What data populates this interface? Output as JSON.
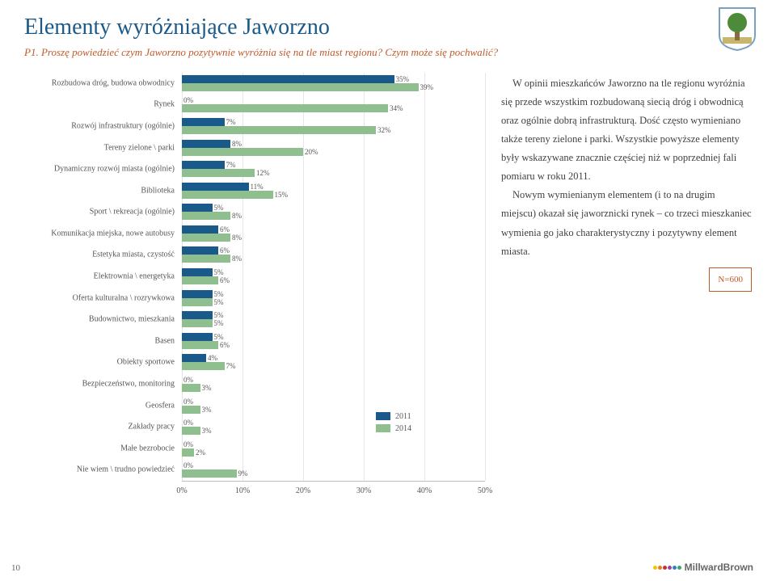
{
  "page": {
    "title": "Elementy wyróżniające Jaworzno",
    "subtitle": "P1. Proszę powiedzieć czym Jaworzno pozytywnie wyróżnia się na tle miast regionu? Czym może się pochwalić?",
    "page_number": "10",
    "n_label": "N=600",
    "footer_brand": "MillwardBrown"
  },
  "chart": {
    "type": "grouped-horizontal-bar",
    "xlim": [
      0,
      50
    ],
    "xtick_step": 10,
    "xtick_format_suffix": "%",
    "colors": {
      "primary": "#1a5a8a",
      "secondary": "#8fbf8f",
      "grid": "#e6e6e6",
      "axis": "#bfbfbf"
    },
    "legend": [
      {
        "label": "2011",
        "color": "#1a5a8a"
      },
      {
        "label": "2014",
        "color": "#8fbf8f"
      }
    ],
    "label_fontsize": 10,
    "value_fontsize": 9,
    "categories": [
      {
        "label": "Rozbudowa dróg, budowa obwodnicy",
        "v2011": 35,
        "v2014": 39
      },
      {
        "label": "Rynek",
        "v2011": 0,
        "v2014": 34
      },
      {
        "label": "Rozwój infrastruktury (ogólnie)",
        "v2011": 7,
        "v2014": 32
      },
      {
        "label": "Tereny zielone \\ parki",
        "v2011": 8,
        "v2014": 20
      },
      {
        "label": "Dynamiczny rozwój miasta (ogólnie)",
        "v2011": 7,
        "v2014": 12
      },
      {
        "label": "Biblioteka",
        "v2011": 11,
        "v2014": 15
      },
      {
        "label": "Sport \\ rekreacja (ogólnie)",
        "v2011": 5,
        "v2014": 8
      },
      {
        "label": "Komunikacja miejska, nowe autobusy",
        "v2011": 6,
        "v2014": 8
      },
      {
        "label": "Estetyka miasta, czystość",
        "v2011": 6,
        "v2014": 8
      },
      {
        "label": "Elektrownia \\ energetyka",
        "v2011": 5,
        "v2014": 6
      },
      {
        "label": "Oferta kulturalna \\ rozrywkowa",
        "v2011": 5,
        "v2014": 5
      },
      {
        "label": "Budownictwo, mieszkania",
        "v2011": 5,
        "v2014": 5
      },
      {
        "label": "Basen",
        "v2011": 5,
        "v2014": 6
      },
      {
        "label": "Obiekty sportowe",
        "v2011": 4,
        "v2014": 7
      },
      {
        "label": "Bezpieczeństwo, monitoring",
        "v2011": 0,
        "v2014": 3
      },
      {
        "label": "Geosfera",
        "v2011": 0,
        "v2014": 3
      },
      {
        "label": "Zakłady pracy",
        "v2011": 0,
        "v2014": 3
      },
      {
        "label": "Małe bezrobocie",
        "v2011": 0,
        "v2014": 2
      },
      {
        "label": "Nie wiem \\ trudno powiedzieć",
        "v2011": 0,
        "v2014": 9
      }
    ]
  },
  "sidetext": {
    "p1": "W opinii mieszkańców Jaworzno na tle regionu wyróżnia się przede wszystkim rozbudowaną siecią dróg i obwodnicą oraz ogólnie dobrą infrastrukturą. Dość często wymieniano także tereny zielone i parki. Wszystkie powyższe elementy były wskazywane znacznie częściej niż w poprzedniej fali pomiaru w roku 2011.",
    "p2": "Nowym wymienianym elementem (i to na drugim miejscu) okazał się jaworznicki rynek – co trzeci mieszkaniec wymienia go jako charakterystyczny i pozytywny element miasta."
  },
  "logo_colors": {
    "shield_border": "#7aa0c4",
    "tree": "#4d8b3a",
    "trunk": "#8b6b3e",
    "ground": "#c9b56e"
  },
  "mb_dots": [
    "#f2c400",
    "#e87d1e",
    "#c92f2f",
    "#8e4b9e",
    "#3a7bbf",
    "#3aa66a"
  ]
}
